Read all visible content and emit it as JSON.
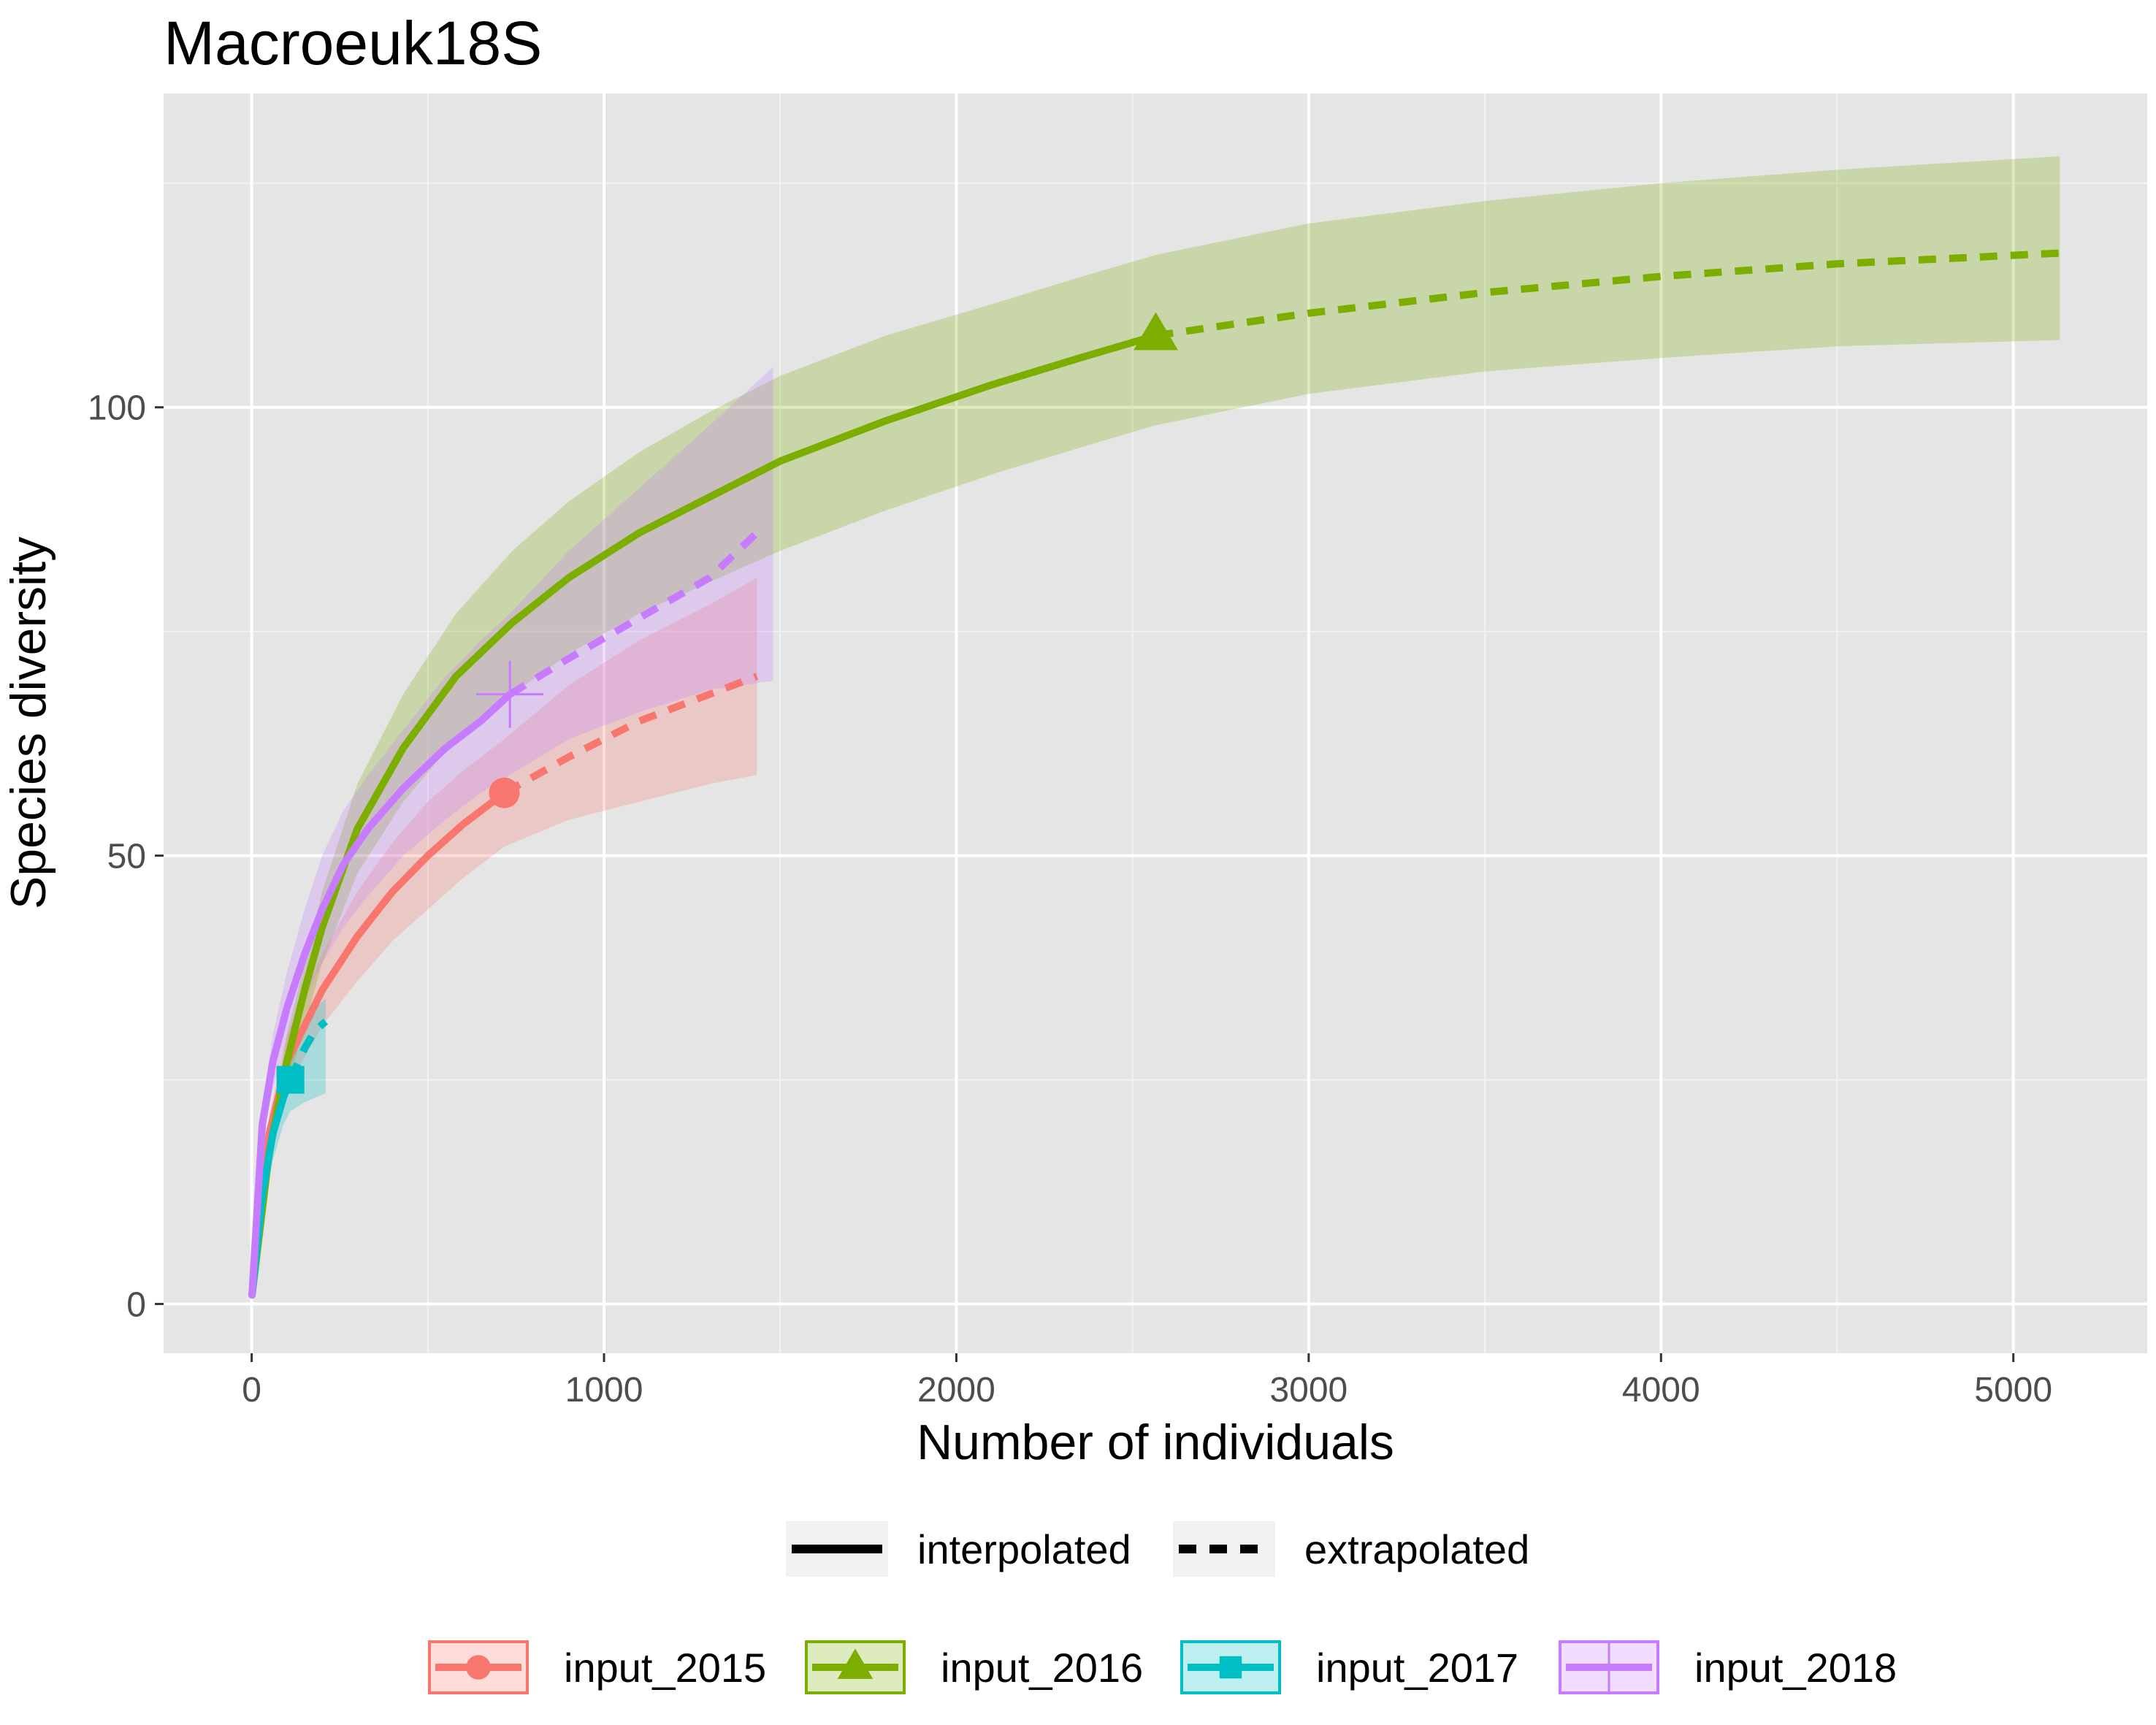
{
  "chart_data": {
    "type": "line",
    "title": "Macroeuk18S",
    "xlabel": "Number of individuals",
    "ylabel": "Species diversity",
    "xlim": [
      -250,
      5380
    ],
    "ylim": [
      -5.5,
      135
    ],
    "x_ticks": [
      0,
      1000,
      2000,
      3000,
      4000,
      5000
    ],
    "x_tick_labels": [
      "0",
      "1000",
      "2000",
      "3000",
      "4000",
      "5000"
    ],
    "y_ticks": [
      0,
      50,
      100
    ],
    "y_tick_labels": [
      "0",
      "50",
      "100"
    ],
    "grid": true,
    "background": "#e5e5e5",
    "legend_placement": "bottom",
    "linetype_legend": [
      {
        "label": "interpolated",
        "style": "solid"
      },
      {
        "label": "extrapolated",
        "style": "dashed"
      }
    ],
    "series": [
      {
        "name": "input_2015",
        "color": "#f8766d",
        "marker": "circle",
        "observed": {
          "x": 717,
          "y": 57
        },
        "interpolated": [
          [
            1,
            1
          ],
          [
            50,
            19
          ],
          [
            100,
            27
          ],
          [
            200,
            35
          ],
          [
            300,
            41
          ],
          [
            400,
            46
          ],
          [
            500,
            50
          ],
          [
            600,
            53.5
          ],
          [
            717,
            57
          ]
        ],
        "extrapolated": [
          [
            717,
            57
          ],
          [
            900,
            61
          ],
          [
            1100,
            65
          ],
          [
            1300,
            68
          ],
          [
            1434,
            70
          ]
        ],
        "ci_lower": [
          [
            1,
            1
          ],
          [
            50,
            17
          ],
          [
            100,
            24
          ],
          [
            200,
            31
          ],
          [
            300,
            36
          ],
          [
            400,
            40.5
          ],
          [
            500,
            44
          ],
          [
            600,
            47.5
          ],
          [
            717,
            51
          ],
          [
            900,
            54
          ],
          [
            1100,
            56
          ],
          [
            1300,
            58
          ],
          [
            1434,
            59
          ]
        ],
        "ci_upper": [
          [
            1,
            1
          ],
          [
            50,
            21
          ],
          [
            100,
            30
          ],
          [
            200,
            39
          ],
          [
            300,
            46
          ],
          [
            400,
            51.5
          ],
          [
            500,
            56
          ],
          [
            600,
            59.5
          ],
          [
            717,
            63
          ],
          [
            900,
            69
          ],
          [
            1100,
            74
          ],
          [
            1300,
            78
          ],
          [
            1434,
            81
          ]
        ]
      },
      {
        "name": "input_2016",
        "color": "#7cae00",
        "marker": "triangle",
        "observed": {
          "x": 2566,
          "y": 108
        },
        "interpolated": [
          [
            1,
            1
          ],
          [
            50,
            17
          ],
          [
            100,
            27
          ],
          [
            150,
            35
          ],
          [
            200,
            42
          ],
          [
            300,
            53
          ],
          [
            430,
            62
          ],
          [
            580,
            70
          ],
          [
            740,
            76
          ],
          [
            900,
            81
          ],
          [
            1100,
            86
          ],
          [
            1300,
            90
          ],
          [
            1500,
            94
          ],
          [
            1800,
            98.5
          ],
          [
            2100,
            102.5
          ],
          [
            2350,
            105.5
          ],
          [
            2566,
            108
          ]
        ],
        "extrapolated": [
          [
            2566,
            108
          ],
          [
            3000,
            110.5
          ],
          [
            3500,
            112.8
          ],
          [
            4000,
            114.6
          ],
          [
            4500,
            116
          ],
          [
            5132,
            117.2
          ]
        ],
        "ci_lower": [
          [
            1,
            1
          ],
          [
            50,
            15
          ],
          [
            100,
            24
          ],
          [
            200,
            38
          ],
          [
            300,
            48
          ],
          [
            430,
            56
          ],
          [
            580,
            63
          ],
          [
            740,
            68
          ],
          [
            900,
            72.5
          ],
          [
            1100,
            77
          ],
          [
            1300,
            80.5
          ],
          [
            1500,
            84
          ],
          [
            1800,
            88.5
          ],
          [
            2100,
            92.5
          ],
          [
            2350,
            95.5
          ],
          [
            2566,
            98
          ],
          [
            3000,
            101.5
          ],
          [
            3500,
            104
          ],
          [
            4000,
            105.5
          ],
          [
            4500,
            106.8
          ],
          [
            5132,
            107.5
          ]
        ],
        "ci_upper": [
          [
            1,
            1
          ],
          [
            50,
            19
          ],
          [
            100,
            30
          ],
          [
            200,
            46
          ],
          [
            300,
            58
          ],
          [
            430,
            68
          ],
          [
            580,
            77
          ],
          [
            740,
            84
          ],
          [
            900,
            89.5
          ],
          [
            1100,
            95
          ],
          [
            1300,
            99.5
          ],
          [
            1500,
            103.5
          ],
          [
            1800,
            108
          ],
          [
            2100,
            111.5
          ],
          [
            2350,
            114.5
          ],
          [
            2566,
            117
          ],
          [
            3000,
            120.5
          ],
          [
            3500,
            123
          ],
          [
            4000,
            125
          ],
          [
            4500,
            126.5
          ],
          [
            5132,
            128
          ]
        ]
      },
      {
        "name": "input_2017",
        "color": "#00bfc4",
        "marker": "square",
        "observed": {
          "x": 110,
          "y": 25
        },
        "interpolated": [
          [
            1,
            1
          ],
          [
            30,
            12
          ],
          [
            60,
            19
          ],
          [
            90,
            23
          ],
          [
            110,
            25
          ]
        ],
        "extrapolated": [
          [
            110,
            25
          ],
          [
            150,
            28.5
          ],
          [
            180,
            30.5
          ],
          [
            210,
            31.5
          ]
        ],
        "ci_lower": [
          [
            1,
            1
          ],
          [
            30,
            10
          ],
          [
            60,
            16
          ],
          [
            90,
            20
          ],
          [
            110,
            21.5
          ],
          [
            150,
            22.5
          ],
          [
            180,
            23
          ],
          [
            210,
            23.5
          ]
        ],
        "ci_upper": [
          [
            1,
            1
          ],
          [
            30,
            14
          ],
          [
            60,
            22
          ],
          [
            90,
            26.5
          ],
          [
            110,
            28.5
          ],
          [
            150,
            31.5
          ],
          [
            180,
            33
          ],
          [
            210,
            34
          ]
        ]
      },
      {
        "name": "input_2018",
        "color": "#c77cff",
        "marker": "cross",
        "observed": {
          "x": 733,
          "y": 68
        },
        "interpolated": [
          [
            1,
            1
          ],
          [
            30,
            20
          ],
          [
            60,
            27
          ],
          [
            100,
            33
          ],
          [
            150,
            39
          ],
          [
            200,
            44
          ],
          [
            260,
            49
          ],
          [
            330,
            53
          ],
          [
            430,
            57.5
          ],
          [
            550,
            62
          ],
          [
            650,
            65
          ],
          [
            733,
            68
          ]
        ],
        "extrapolated": [
          [
            733,
            68
          ],
          [
            900,
            72
          ],
          [
            1100,
            76.5
          ],
          [
            1300,
            81
          ],
          [
            1434,
            86
          ]
        ],
        "ci_lower": [
          [
            1,
            1
          ],
          [
            30,
            18
          ],
          [
            60,
            24
          ],
          [
            100,
            29
          ],
          [
            150,
            34
          ],
          [
            200,
            38
          ],
          [
            260,
            42
          ],
          [
            330,
            45.5
          ],
          [
            430,
            50
          ],
          [
            550,
            54
          ],
          [
            650,
            57
          ],
          [
            733,
            59
          ],
          [
            900,
            63
          ],
          [
            1100,
            66
          ],
          [
            1300,
            68.5
          ],
          [
            1480,
            69.5
          ]
        ],
        "ci_upper": [
          [
            1,
            1
          ],
          [
            30,
            22
          ],
          [
            60,
            30
          ],
          [
            100,
            37
          ],
          [
            150,
            44
          ],
          [
            200,
            50
          ],
          [
            260,
            55
          ],
          [
            330,
            59
          ],
          [
            430,
            64
          ],
          [
            550,
            70
          ],
          [
            650,
            74
          ],
          [
            733,
            77
          ],
          [
            900,
            84
          ],
          [
            1100,
            91
          ],
          [
            1300,
            98
          ],
          [
            1480,
            104.5
          ]
        ]
      }
    ]
  }
}
